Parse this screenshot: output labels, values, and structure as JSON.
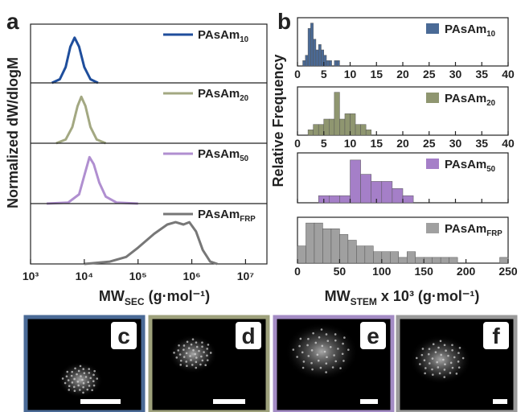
{
  "chart_data": [
    {
      "type": "line",
      "panel": "a",
      "y_label": "Normalized dW/dlogM",
      "x_label": {
        "text": "MW",
        "sub": "SEC",
        "after": " (g·mol⁻¹)"
      },
      "log_x": true,
      "xlim": [
        1000,
        25000000
      ],
      "ylim": [
        0,
        1.3
      ],
      "xticks": [
        {
          "value": 1000,
          "label": "10³"
        },
        {
          "value": 10000,
          "label": "10⁴"
        },
        {
          "value": 100000,
          "label": "10⁵"
        },
        {
          "value": 1000000,
          "label": "10⁶"
        },
        {
          "value": 10000000,
          "label": "10⁷"
        }
      ],
      "series": [
        {
          "name": "PAsAm",
          "name_sub": "10",
          "color": "#1f4e9c",
          "x": [
            2500,
            3500,
            4500,
            5500,
            6600,
            8000,
            10000,
            13000,
            18000
          ],
          "values": [
            0,
            0.08,
            0.35,
            0.8,
            1,
            0.8,
            0.35,
            0.08,
            0
          ]
        },
        {
          "name": "PAsAm",
          "name_sub": "20",
          "color": "#a3a882",
          "x": [
            3000,
            4500,
            6000,
            7500,
            8800,
            10500,
            13000,
            17000,
            25000
          ],
          "values": [
            0,
            0.08,
            0.35,
            0.8,
            1,
            0.8,
            0.35,
            0.08,
            0
          ]
        },
        {
          "name": "PAsAm",
          "name_sub": "50",
          "color": "#b08fd0",
          "x": [
            2000,
            5000,
            8000,
            10000,
            12500,
            15000,
            19000,
            25000,
            40000,
            100000
          ],
          "values": [
            0,
            0.02,
            0.2,
            0.6,
            1,
            0.85,
            0.45,
            0.15,
            0.02,
            0
          ]
        },
        {
          "name": "PAsAm",
          "name_sub": "FRP",
          "color": "#777777",
          "x": [
            10000,
            30000,
            60000,
            100000,
            200000,
            350000,
            500000,
            700000,
            900000,
            1200000,
            1600000,
            2200000,
            3000000
          ],
          "values": [
            0,
            0.05,
            0.15,
            0.35,
            0.65,
            0.85,
            0.9,
            0.85,
            0.9,
            0.7,
            0.3,
            0.05,
            0
          ]
        }
      ]
    },
    {
      "type": "histogram",
      "panel": "b",
      "y_label": "Relative Frequency",
      "x_label": {
        "text": "MW",
        "sub": "STEM",
        "after": " x 10³ (g·mol⁻¹)"
      },
      "panels": [
        {
          "name": "PAsAm",
          "name_sub": "10",
          "color": "#4a6a96",
          "xlim": [
            0,
            40
          ],
          "ylim": [
            0,
            9
          ],
          "tick_labels": true,
          "xticks": [
            0,
            5,
            10,
            15,
            20,
            25,
            30,
            35,
            40
          ],
          "bins": [
            1,
            1.5,
            2,
            2.5,
            3,
            3.5,
            4,
            4.5,
            5,
            5.5,
            6,
            6.5,
            7,
            7.5,
            8
          ],
          "counts": [
            1,
            2,
            7,
            8,
            5,
            3,
            4,
            3,
            2,
            1,
            1,
            0,
            1,
            1
          ]
        },
        {
          "name": "PAsAm",
          "name_sub": "20",
          "color": "#8f9670",
          "xlim": [
            0,
            40
          ],
          "ylim": [
            0,
            9
          ],
          "tick_labels": true,
          "xticks": [
            0,
            5,
            10,
            15,
            20,
            25,
            30,
            35,
            40
          ],
          "bins": [
            2,
            3,
            4,
            5,
            6,
            7,
            8,
            9,
            10,
            11,
            12,
            13,
            14
          ],
          "counts": [
            1,
            2,
            2,
            3,
            3,
            8,
            3,
            4,
            4,
            2,
            2,
            1
          ]
        },
        {
          "name": "PAsAm",
          "name_sub": "50",
          "color": "#a57fc8",
          "xlim": [
            0,
            40
          ],
          "ylim": [
            0,
            7
          ],
          "tick_labels": false,
          "xticks": [
            0,
            5,
            10,
            15,
            20,
            25,
            30,
            35,
            40
          ],
          "bins": [
            4,
            6,
            8,
            10,
            12,
            14,
            16,
            18,
            20,
            22
          ],
          "counts": [
            1,
            1,
            1,
            6,
            4,
            3,
            3,
            2,
            1
          ]
        },
        {
          "name": "PAsAm",
          "name_sub": "FRP",
          "color": "#a0a0a0",
          "xlim": [
            0,
            250
          ],
          "ylim": [
            0,
            8
          ],
          "tick_labels": true,
          "xticks": [
            0,
            50,
            100,
            150,
            200,
            250
          ],
          "bins": [
            0,
            10,
            20,
            30,
            40,
            50,
            60,
            70,
            80,
            90,
            100,
            110,
            120,
            130,
            140,
            150,
            160,
            170,
            180,
            190,
            200,
            210,
            220,
            230,
            240,
            250
          ],
          "counts": [
            3,
            7,
            7,
            6,
            6,
            5,
            4,
            3,
            3,
            2,
            2,
            2,
            1,
            2,
            1,
            1,
            1,
            1,
            1,
            0,
            0,
            0,
            0,
            0,
            1
          ]
        }
      ]
    }
  ],
  "images": [
    {
      "label": "c",
      "border": "#4a6a96"
    },
    {
      "label": "d",
      "border": "#9ea17c"
    },
    {
      "label": "e",
      "border": "#a38bc4"
    },
    {
      "label": "f",
      "border": "#9a9a9a"
    }
  ]
}
